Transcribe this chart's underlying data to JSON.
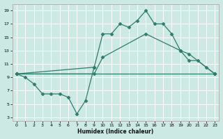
{
  "xlabel": "Humidex (Indice chaleur)",
  "bg_color": "#cce9e4",
  "line_color": "#2e7d6e",
  "xlim": [
    -0.5,
    23.5
  ],
  "ylim": [
    2.5,
    20
  ],
  "yticks": [
    3,
    5,
    7,
    9,
    11,
    13,
    15,
    17,
    19
  ],
  "xticks": [
    0,
    1,
    2,
    3,
    4,
    5,
    6,
    7,
    8,
    9,
    10,
    11,
    12,
    13,
    14,
    15,
    16,
    17,
    18,
    19,
    20,
    21,
    22,
    23
  ],
  "series": [
    {
      "x": [
        0,
        9,
        10,
        11,
        12,
        13,
        14,
        15,
        16,
        17,
        18,
        19,
        20,
        21,
        22,
        23
      ],
      "y": [
        9.5,
        10.5,
        15.5,
        15.5,
        17.0,
        16.5,
        17.5,
        19.0,
        17.0,
        17.0,
        15.5,
        13.0,
        11.5,
        11.5,
        10.5,
        9.5
      ]
    },
    {
      "x": [
        0,
        9,
        10,
        15,
        19,
        20,
        23
      ],
      "y": [
        9.5,
        9.5,
        12.0,
        15.5,
        13.0,
        12.5,
        9.5
      ]
    },
    {
      "x": [
        0,
        23
      ],
      "y": [
        9.5,
        9.5
      ]
    },
    {
      "x": [
        0,
        1,
        2,
        3,
        4,
        5,
        6,
        7,
        8,
        9
      ],
      "y": [
        9.5,
        9.0,
        8.0,
        6.5,
        6.5,
        6.5,
        6.0,
        3.5,
        5.5,
        10.5
      ]
    }
  ]
}
